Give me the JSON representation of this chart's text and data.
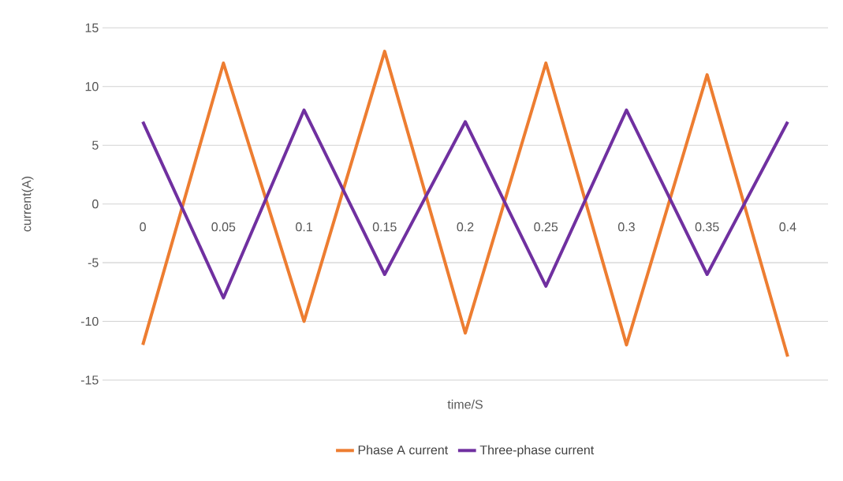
{
  "chart_data": {
    "type": "line",
    "xlabel": "time/S",
    "ylabel": "current(A)",
    "categories": [
      "0",
      "0.05",
      "0.1",
      "0.15",
      "0.2",
      "0.25",
      "0.3",
      "0.35",
      "0.4"
    ],
    "series": [
      {
        "name": "Phase A current",
        "color": "#ed7d31",
        "values": [
          -12,
          12,
          -10,
          13,
          -11,
          12,
          -12,
          11,
          -13
        ]
      },
      {
        "name": "Three-phase current",
        "color": "#7030a0",
        "values": [
          7,
          -8,
          8,
          -6,
          7,
          -7,
          8,
          -6,
          7
        ]
      }
    ],
    "ylim": [
      -15,
      15
    ],
    "yticks": [
      -15,
      -10,
      -5,
      0,
      5,
      10,
      15
    ],
    "grid": "y",
    "legend": "bottom",
    "marker": "none",
    "line_style": "solid"
  }
}
